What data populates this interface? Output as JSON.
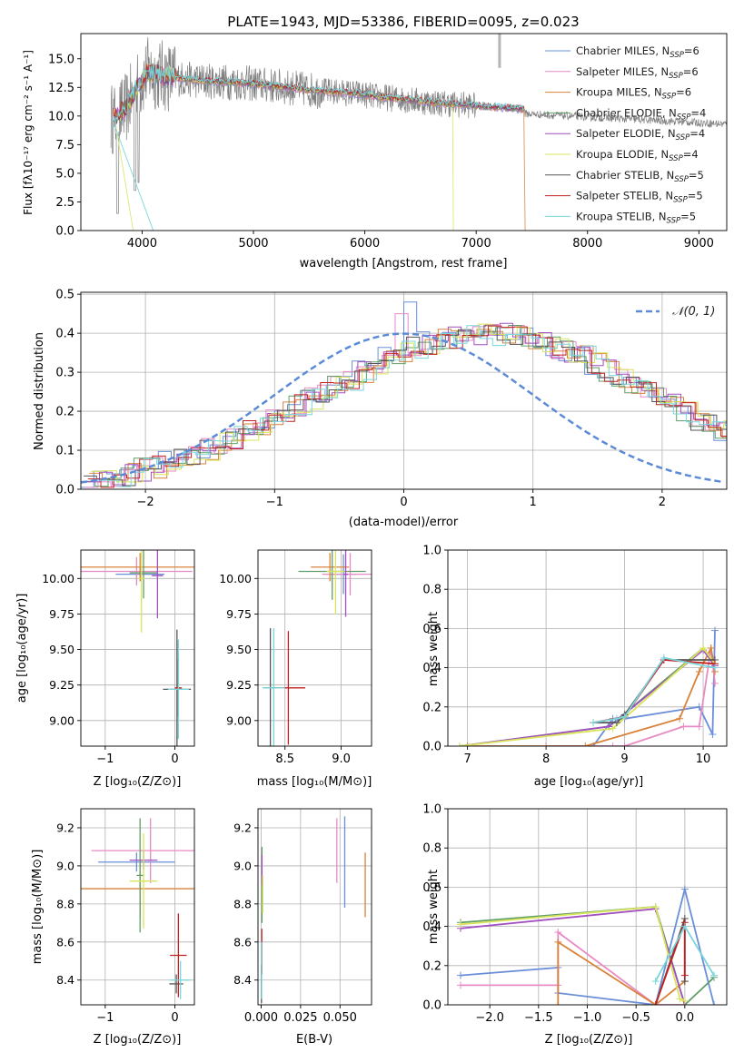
{
  "colors": {
    "chabrier_miles": "#6a8fd8",
    "salpeter_miles": "#e88ac4",
    "kroupa_miles": "#d9823b",
    "chabrier_elodie": "#5f9e67",
    "salpeter_elodie": "#a24fc1",
    "kroupa_elodie": "#d8e45a",
    "chabrier_stelib": "#555555",
    "salpeter_stelib": "#c42222",
    "kroupa_stelib": "#78d6dc",
    "gauss": "#5b8bd6",
    "spectrum": "#7f7f7f"
  },
  "chart_data": [
    {
      "type": "line",
      "title": "PLATE=1943, MJD=53386, FIBERID=0095, z=0.023",
      "xlabel": "wavelength [Angstrom, rest frame]",
      "ylabel": "Flux [fλ10⁻¹⁷ erg cm⁻² s⁻¹ A⁻¹]",
      "xlim": [
        3450,
        9250
      ],
      "ylim": [
        0,
        17.2
      ],
      "xticks": [
        "4000",
        "5000",
        "6000",
        "7000",
        "8000",
        "9000"
      ],
      "yticks": [
        "0.0",
        "2.5",
        "5.0",
        "7.5",
        "10.0",
        "12.5",
        "15.0"
      ],
      "legend_position": "top-right",
      "legend": [
        {
          "name": "Chabrier MILES, N",
          "sub": "SSP",
          "suffix": "=6",
          "color_key": "chabrier_miles"
        },
        {
          "name": "Salpeter MILES, N",
          "sub": "SSP",
          "suffix": "=6",
          "color_key": "salpeter_miles"
        },
        {
          "name": "Kroupa MILES, N",
          "sub": "SSP",
          "suffix": "=6",
          "color_key": "kroupa_miles"
        },
        {
          "name": "Chabrier ELODIE, N",
          "sub": "SSP",
          "suffix": "=4",
          "color_key": "chabrier_elodie"
        },
        {
          "name": "Salpeter ELODIE, N",
          "sub": "SSP",
          "suffix": "=4",
          "color_key": "salpeter_elodie"
        },
        {
          "name": "Kroupa ELODIE, N",
          "sub": "SSP",
          "suffix": "=4",
          "color_key": "kroupa_elodie"
        },
        {
          "name": "Chabrier STELIB, N",
          "sub": "SSP",
          "suffix": "=5",
          "color_key": "chabrier_stelib"
        },
        {
          "name": "Salpeter STELIB, N",
          "sub": "SSP",
          "suffix": "=5",
          "color_key": "salpeter_stelib"
        },
        {
          "name": "Kroupa STELIB, N",
          "sub": "SSP",
          "suffix": "=5",
          "color_key": "kroupa_stelib"
        }
      ],
      "model_x": [
        3750,
        3850,
        3950,
        4050,
        4150,
        4300,
        4500,
        4700,
        4900,
        5100,
        5300,
        5500,
        5700,
        5900,
        6100,
        6300,
        6500,
        6700,
        6900,
        7100,
        7300,
        7420
      ],
      "model_y": [
        9.8,
        10.6,
        12.4,
        13.8,
        13.6,
        13.3,
        13.1,
        13.0,
        12.9,
        12.7,
        12.5,
        12.3,
        12.1,
        12.0,
        11.7,
        11.5,
        11.3,
        11.1,
        11.0,
        10.8,
        10.7,
        10.6
      ]
    },
    {
      "type": "line",
      "xlabel": "(data-model)/error",
      "ylabel": "Normed distribution",
      "xlim": [
        -2.5,
        2.5
      ],
      "ylim": [
        0,
        0.505
      ],
      "xticks": [
        {
          "v": -2,
          "t": "−2"
        },
        {
          "v": -1,
          "t": "−1"
        },
        {
          "v": 0,
          "t": "0"
        },
        {
          "v": 1,
          "t": "1"
        },
        {
          "v": 2,
          "t": "2"
        }
      ],
      "yticks": [
        "0.0",
        "0.1",
        "0.2",
        "0.3",
        "0.4",
        "0.5"
      ],
      "legend": "𝒩(0, 1)",
      "legend_position": "top-right",
      "bins_start": -2.5,
      "bin_width": 0.1,
      "base_hist": [
        0.018,
        0.022,
        0.028,
        0.038,
        0.05,
        0.058,
        0.068,
        0.08,
        0.092,
        0.104,
        0.118,
        0.132,
        0.147,
        0.163,
        0.18,
        0.197,
        0.214,
        0.231,
        0.248,
        0.266,
        0.283,
        0.3,
        0.318,
        0.335,
        0.35,
        0.363,
        0.374,
        0.383,
        0.39,
        0.395,
        0.398,
        0.398,
        0.396,
        0.391,
        0.384,
        0.375,
        0.364,
        0.351,
        0.338,
        0.322,
        0.306,
        0.289,
        0.271,
        0.253,
        0.235,
        0.216,
        0.198,
        0.18,
        0.163,
        0.146,
        0.13,
        0.115,
        0.101,
        0.089,
        0.078,
        0.068,
        0.058,
        0.05,
        0.043,
        0.036,
        0.03,
        0.025,
        0.021,
        0.017
      ]
    },
    {
      "type": "scatter",
      "xlabel": "Z [log₁₀(Z/Z⊙)]",
      "ylabel": "age  [log₁₀(age/yr)]",
      "xlim": [
        -1.35,
        0.28
      ],
      "ylim": [
        8.82,
        10.2
      ],
      "xticks": [
        {
          "v": -1,
          "t": "−1"
        },
        {
          "v": 0,
          "t": "0"
        }
      ],
      "yticks": [
        {
          "v": 9.0,
          "t": "9.00"
        },
        {
          "v": 9.25,
          "t": "9.25"
        },
        {
          "v": 9.5,
          "t": "9.50"
        },
        {
          "v": 9.75,
          "t": "9.75"
        },
        {
          "v": 10.0,
          "t": "10.00"
        }
      ],
      "points": [
        {
          "c": "chabrier_miles",
          "x": -0.5,
          "y": 10.03,
          "dx": 0.35,
          "dy": 0.05
        },
        {
          "c": "salpeter_miles",
          "x": -0.55,
          "y": 10.05,
          "dx": 0.8,
          "dy": 0.1
        },
        {
          "c": "kroupa_miles",
          "x": -0.5,
          "y": 10.08,
          "dx": 0.9,
          "dy": 0.1
        },
        {
          "c": "chabrier_elodie",
          "x": -0.45,
          "y": 10.04,
          "dx": 0.2,
          "dy": 0.18
        },
        {
          "c": "salpeter_elodie",
          "x": -0.25,
          "y": 10.02,
          "dx": 0.08,
          "dy": 0.3
        },
        {
          "c": "kroupa_elodie",
          "x": -0.48,
          "y": 10.0,
          "dx": 0.05,
          "dy": 0.38
        },
        {
          "c": "chabrier_stelib",
          "x": 0.03,
          "y": 9.22,
          "dx": 0.2,
          "dy": 0.42
        },
        {
          "c": "salpeter_stelib",
          "x": 0.05,
          "y": 9.23,
          "dx": 0.05,
          "dy": 0.2
        },
        {
          "c": "kroupa_stelib",
          "x": 0.05,
          "y": 9.22,
          "dx": 0.15,
          "dy": 0.35
        }
      ]
    },
    {
      "type": "scatter",
      "xlabel": "mass [log₁₀(M/M⊙)]",
      "ylabel": "",
      "xlim": [
        8.26,
        9.27
      ],
      "ylim": [
        8.82,
        10.2
      ],
      "xticks": [
        {
          "v": 8.5,
          "t": "8.5"
        },
        {
          "v": 9.0,
          "t": "9.0"
        }
      ],
      "yticks": [
        {
          "v": 9.0,
          "t": "9.00"
        },
        {
          "v": 9.25,
          "t": "9.25"
        },
        {
          "v": 9.5,
          "t": "9.50"
        },
        {
          "v": 9.75,
          "t": "9.75"
        },
        {
          "v": 10.0,
          "t": "10.00"
        }
      ],
      "points": [
        {
          "c": "chabrier_miles",
          "x": 9.02,
          "y": 10.03,
          "dx": 0.12,
          "dy": 0.14
        },
        {
          "c": "salpeter_miles",
          "x": 9.08,
          "y": 10.03,
          "dx": 0.25,
          "dy": 0.15
        },
        {
          "c": "kroupa_miles",
          "x": 8.9,
          "y": 10.08,
          "dx": 0.17,
          "dy": 0.1
        },
        {
          "c": "chabrier_elodie",
          "x": 8.92,
          "y": 10.05,
          "dx": 0.3,
          "dy": 0.2
        },
        {
          "c": "salpeter_elodie",
          "x": 9.04,
          "y": 10.03,
          "dx": 0.02,
          "dy": 0.3
        },
        {
          "c": "kroupa_elodie",
          "x": 8.95,
          "y": 10.05,
          "dx": 0.08,
          "dy": 0.3
        },
        {
          "c": "chabrier_stelib",
          "x": 8.37,
          "y": 9.23,
          "dx": 0.05,
          "dy": 0.42
        },
        {
          "c": "salpeter_stelib",
          "x": 8.53,
          "y": 9.23,
          "dx": 0.15,
          "dy": 0.4
        },
        {
          "c": "kroupa_stelib",
          "x": 8.4,
          "y": 9.23,
          "dx": 0.1,
          "dy": 0.42
        }
      ]
    },
    {
      "type": "line",
      "xlabel": "age  [log₁₀(age/yr)]",
      "ylabel": "mass weight",
      "xlim": [
        6.75,
        10.3
      ],
      "ylim": [
        0,
        1
      ],
      "xticks": [
        {
          "v": 7,
          "t": "7"
        },
        {
          "v": 8,
          "t": "8"
        },
        {
          "v": 9,
          "t": "9"
        },
        {
          "v": 10,
          "t": "10"
        }
      ],
      "yticks": [
        {
          "v": 0,
          "t": "0.0"
        },
        {
          "v": 0.2,
          "t": "0.2"
        },
        {
          "v": 0.4,
          "t": "0.4"
        },
        {
          "v": 0.6,
          "t": "0.6"
        },
        {
          "v": 0.8,
          "t": "0.8"
        },
        {
          "v": 1,
          "t": "1.0"
        }
      ],
      "series": [
        {
          "c": "chabrier_miles",
          "x": [
            8.0,
            8.6,
            8.85,
            9.0,
            9.95,
            10.12,
            10.15
          ],
          "y": [
            0.0,
            0.0,
            0.14,
            0.14,
            0.2,
            0.06,
            0.59
          ]
        },
        {
          "c": "salpeter_miles",
          "x": [
            8.0,
            8.85,
            9.0,
            9.75,
            9.95,
            10.1,
            10.15
          ],
          "y": [
            0.0,
            0.0,
            0.0,
            0.1,
            0.1,
            0.5,
            0.32
          ]
        },
        {
          "c": "kroupa_miles",
          "x": [
            7.0,
            8.5,
            9.7,
            9.95,
            10.1,
            10.15
          ],
          "y": [
            0.0,
            0.0,
            0.14,
            0.38,
            0.5,
            0.38
          ]
        },
        {
          "c": "chabrier_elodie",
          "x": [
            6.9,
            8.8,
            10.0,
            10.15
          ],
          "y": [
            0.0,
            0.1,
            0.5,
            0.42
          ]
        },
        {
          "c": "salpeter_elodie",
          "x": [
            6.9,
            8.8,
            10.0,
            10.15
          ],
          "y": [
            0.0,
            0.1,
            0.49,
            0.41
          ]
        },
        {
          "c": "kroupa_elodie",
          "x": [
            6.9,
            8.85,
            10.0,
            10.15
          ],
          "y": [
            0.0,
            0.09,
            0.5,
            0.42
          ]
        },
        {
          "c": "chabrier_stelib",
          "x": [
            8.6,
            8.9,
            9.0,
            9.5,
            10.15
          ],
          "y": [
            0.12,
            0.12,
            0.16,
            0.44,
            0.44
          ]
        },
        {
          "c": "salpeter_stelib",
          "x": [
            8.6,
            9.0,
            9.5,
            10.15
          ],
          "y": [
            0.12,
            0.15,
            0.44,
            0.42
          ]
        },
        {
          "c": "kroupa_stelib",
          "x": [
            8.6,
            8.9,
            9.0,
            9.5,
            10.15
          ],
          "y": [
            0.12,
            0.14,
            0.15,
            0.45,
            0.4
          ]
        }
      ]
    },
    {
      "type": "scatter",
      "xlabel": "Z [log₁₀(Z/Z⊙)]",
      "ylabel": "mass [log₁₀(M/M⊙)]",
      "xlim": [
        -1.35,
        0.28
      ],
      "ylim": [
        8.27,
        9.3
      ],
      "xticks": [
        {
          "v": -1,
          "t": "−1"
        },
        {
          "v": 0,
          "t": "0"
        }
      ],
      "yticks": [
        {
          "v": 8.4,
          "t": "8.4"
        },
        {
          "v": 8.6,
          "t": "8.6"
        },
        {
          "v": 8.8,
          "t": "8.8"
        },
        {
          "v": 9.0,
          "t": "9.0"
        },
        {
          "v": 9.2,
          "t": "9.2"
        }
      ],
      "points": [
        {
          "c": "chabrier_miles",
          "x": -0.55,
          "y": 9.02,
          "dx": 0.55,
          "dy": 0.05
        },
        {
          "c": "salpeter_miles",
          "x": -0.35,
          "y": 9.08,
          "dx": 0.85,
          "dy": 0.17
        },
        {
          "c": "kroupa_miles",
          "x": -0.5,
          "y": 8.88,
          "dx": 0.85,
          "dy": 0.15
        },
        {
          "c": "chabrier_elodie",
          "x": -0.5,
          "y": 8.95,
          "dx": 0.05,
          "dy": 0.3
        },
        {
          "c": "salpeter_elodie",
          "x": -0.45,
          "y": 9.03,
          "dx": 0.2,
          "dy": 0.05
        },
        {
          "c": "kroupa_elodie",
          "x": -0.45,
          "y": 8.92,
          "dx": 0.2,
          "dy": 0.25
        },
        {
          "c": "chabrier_stelib",
          "x": 0.02,
          "y": 8.38,
          "dx": 0.1,
          "dy": 0.05
        },
        {
          "c": "salpeter_stelib",
          "x": 0.05,
          "y": 8.53,
          "dx": 0.12,
          "dy": 0.22
        },
        {
          "c": "kroupa_stelib",
          "x": 0.08,
          "y": 8.4,
          "dx": 0.15,
          "dy": 0.1
        }
      ]
    },
    {
      "type": "scatter",
      "xlabel": "E(B-V)",
      "ylabel": "",
      "xlim": [
        -0.002,
        0.07
      ],
      "ylim": [
        8.27,
        9.3
      ],
      "xticks": [
        {
          "v": 0,
          "t": "0.000"
        },
        {
          "v": 0.025,
          "t": "0.025"
        },
        {
          "v": 0.05,
          "t": "0.050"
        }
      ],
      "yticks": [
        {
          "v": 8.4,
          "t": "8.4"
        },
        {
          "v": 8.6,
          "t": "8.6"
        },
        {
          "v": 8.8,
          "t": "8.8"
        },
        {
          "v": 9.0,
          "t": "9.0"
        },
        {
          "v": 9.2,
          "t": "9.2"
        }
      ],
      "points": [
        {
          "c": "chabrier_miles",
          "x": 0.053,
          "y": 9.02,
          "dx": 0,
          "dy": 0.24
        },
        {
          "c": "salpeter_miles",
          "x": 0.048,
          "y": 9.08,
          "dx": 0,
          "dy": 0.17
        },
        {
          "c": "kroupa_miles",
          "x": 0.066,
          "y": 8.9,
          "dx": 0,
          "dy": 0.17
        },
        {
          "c": "chabrier_elodie",
          "x": 0.0005,
          "y": 8.9,
          "dx": 0,
          "dy": 0.2
        },
        {
          "c": "salpeter_elodie",
          "x": 0.0005,
          "y": 8.98,
          "dx": 0,
          "dy": 0.08
        },
        {
          "c": "kroupa_elodie",
          "x": 0.001,
          "y": 8.85,
          "dx": 0,
          "dy": 0.1
        },
        {
          "c": "chabrier_stelib",
          "x": 0.0002,
          "y": 8.38,
          "dx": 0,
          "dy": 0.1
        },
        {
          "c": "salpeter_stelib",
          "x": 0.0004,
          "y": 8.55,
          "dx": 0,
          "dy": 0.12
        },
        {
          "c": "kroupa_stelib",
          "x": 0.0003,
          "y": 8.45,
          "dx": 0,
          "dy": 0.15
        }
      ]
    },
    {
      "type": "line",
      "xlabel": "Z [log₁₀(Z/Z⊙)]",
      "ylabel": "mass weight",
      "xlim": [
        -2.43,
        0.43
      ],
      "ylim": [
        0,
        1
      ],
      "xticks": [
        {
          "v": -2.0,
          "t": "−2.0"
        },
        {
          "v": -1.5,
          "t": "−1.5"
        },
        {
          "v": -1.0,
          "t": "−1.0"
        },
        {
          "v": -0.5,
          "t": "−0.5"
        },
        {
          "v": 0,
          "t": "0.0"
        }
      ],
      "yticks": [
        {
          "v": 0,
          "t": "0.0"
        },
        {
          "v": 0.2,
          "t": "0.2"
        },
        {
          "v": 0.4,
          "t": "0.4"
        },
        {
          "v": 0.6,
          "t": "0.6"
        },
        {
          "v": 0.8,
          "t": "0.8"
        },
        {
          "v": 1,
          "t": "1.0"
        }
      ],
      "series": [
        {
          "c": "chabrier_miles",
          "x": [
            -2.3,
            -1.3,
            -1.3,
            -0.3,
            0.0,
            0.3
          ],
          "y": [
            0.15,
            0.19,
            0.06,
            0.0,
            0.59,
            0.0
          ]
        },
        {
          "c": "salpeter_miles",
          "x": [
            -2.3,
            -1.3,
            -1.3,
            -0.3,
            0.0
          ],
          "y": [
            0.1,
            0.1,
            0.37,
            0.0,
            0.0
          ]
        },
        {
          "c": "kroupa_miles",
          "x": [
            -1.3,
            -1.3,
            -0.3,
            0.0,
            0.0
          ],
          "y": [
            0.0,
            0.32,
            0.0,
            0.12,
            0.12
          ]
        },
        {
          "c": "chabrier_elodie",
          "x": [
            -2.3,
            -0.3,
            0.0,
            0.3
          ],
          "y": [
            0.42,
            0.5,
            0.0,
            0.14
          ]
        },
        {
          "c": "salpeter_elodie",
          "x": [
            -2.3,
            -0.3,
            0.0
          ],
          "y": [
            0.39,
            0.49,
            0.0
          ]
        },
        {
          "c": "kroupa_elodie",
          "x": [
            -2.3,
            -0.3,
            -0.05,
            0.0
          ],
          "y": [
            0.41,
            0.5,
            0.03,
            0.02
          ]
        },
        {
          "c": "chabrier_stelib",
          "x": [
            -0.3,
            0.0,
            0.0
          ],
          "y": [
            0.0,
            0.44,
            0.12
          ]
        },
        {
          "c": "salpeter_stelib",
          "x": [
            -0.3,
            0.0,
            0.0
          ],
          "y": [
            0.0,
            0.42,
            0.15
          ]
        },
        {
          "c": "kroupa_stelib",
          "x": [
            -0.3,
            0.0,
            0.3
          ],
          "y": [
            0.12,
            0.4,
            0.15
          ]
        }
      ]
    }
  ]
}
